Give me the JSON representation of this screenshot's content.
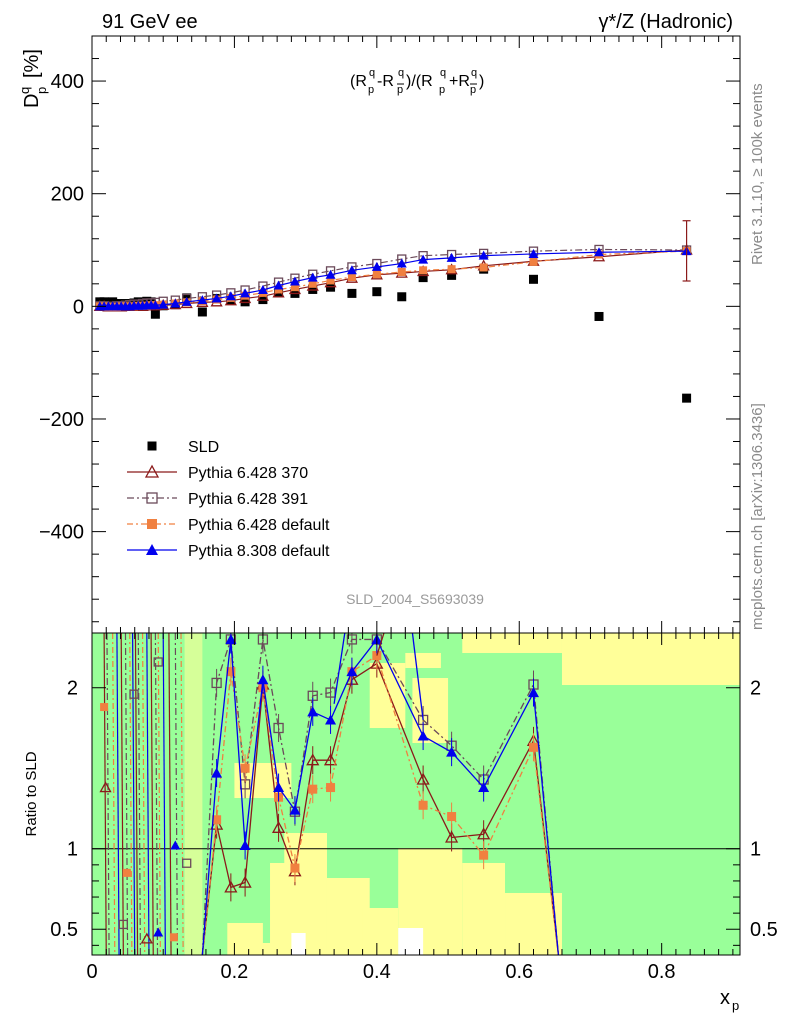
{
  "header": {
    "left": "91 GeV ee",
    "right": "γ*/Z (Hadronic)"
  },
  "side_labels": {
    "top": "Rivet 3.1.10, ≥ 100k events",
    "bottom": "mcplots.cern.ch [arXiv:1306.3436]"
  },
  "watermark": "SLD_2004_S5693039",
  "colors": {
    "data": "#000000",
    "p370": "#8b1a1a",
    "p391": "#6b4a5a",
    "p6def": "#f08040",
    "p8def": "#0000ee",
    "band_green": "#99ff99",
    "band_yellow": "#ffff99"
  },
  "chart_data": [
    {
      "type": "scatter",
      "title": "(R_p^q - R_p̅^q)/(R_p^q + R_p̅^q)",
      "xlabel": "x_p",
      "ylabel": "D_p^q [%]",
      "xlim": [
        0,
        0.91
      ],
      "ylim": [
        -580,
        480
      ],
      "x_ticks": [
        "0",
        "0.2",
        "0.4",
        "0.6",
        "0.8"
      ],
      "y_ticks": [
        "−400",
        "−200",
        "0",
        "200",
        "400"
      ],
      "legend_position": "lower-left",
      "x": [
        0.011,
        0.017,
        0.023,
        0.029,
        0.035,
        0.041,
        0.047,
        0.053,
        0.059,
        0.065,
        0.071,
        0.077,
        0.083,
        0.089,
        0.1,
        0.117,
        0.133,
        0.155,
        0.175,
        0.195,
        0.215,
        0.24,
        0.262,
        0.285,
        0.31,
        0.335,
        0.365,
        0.4,
        0.435,
        0.465,
        0.505,
        0.55,
        0.62,
        0.712,
        0.835
      ],
      "series": [
        {
          "name": "SLD",
          "key": "data",
          "marker": "square-filled",
          "values": [
            8,
            8,
            6,
            8,
            5,
            3,
            5,
            2,
            6,
            8,
            5,
            9,
            8,
            -14,
            1,
            3,
            15,
            -10,
            14,
            11,
            8,
            12,
            24,
            23,
            30,
            34,
            23,
            26,
            17,
            51,
            55,
            66,
            48,
            -18,
            -163
          ]
        },
        {
          "name": "Pythia 6.428 370",
          "key": "p370",
          "marker": "triangle-open",
          "values": [
            0,
            0,
            -1,
            -1,
            -1,
            -1,
            0,
            0,
            0,
            0,
            0,
            1,
            1,
            1,
            2,
            3,
            5,
            7,
            8,
            10,
            14,
            18,
            24,
            30,
            36,
            42,
            50,
            56,
            59,
            62,
            65,
            72,
            80,
            88,
            100
          ]
        },
        {
          "name": "Pythia 6.428 391",
          "key": "p391",
          "marker": "square-open",
          "values": [
            1,
            1,
            0,
            0,
            1,
            1,
            2,
            3,
            4,
            4,
            5,
            6,
            6,
            7,
            9,
            11,
            14,
            17,
            20,
            24,
            29,
            36,
            43,
            50,
            57,
            63,
            70,
            76,
            84,
            90,
            92,
            94,
            98,
            101,
            100
          ]
        },
        {
          "name": "Pythia 6.428 default",
          "key": "p6def",
          "marker": "square-filled",
          "values": [
            0,
            0,
            -1,
            -1,
            -1,
            0,
            0,
            0,
            0,
            1,
            1,
            1,
            2,
            2,
            3,
            5,
            7,
            9,
            12,
            15,
            19,
            24,
            30,
            34,
            40,
            46,
            52,
            57,
            61,
            64,
            66,
            69,
            79,
            92,
            98
          ]
        },
        {
          "name": "Pythia 8.308 default",
          "key": "p8def",
          "marker": "triangle-filled",
          "values": [
            0,
            0,
            0,
            0,
            0,
            0,
            0,
            0,
            1,
            1,
            1,
            2,
            2,
            2,
            3,
            5,
            8,
            11,
            14,
            18,
            23,
            29,
            37,
            44,
            51,
            56,
            64,
            70,
            76,
            83,
            86,
            90,
            93,
            96,
            98
          ]
        }
      ]
    },
    {
      "type": "line",
      "title": "",
      "xlabel": "x_p",
      "ylabel": "Ratio to SLD",
      "xlim": [
        0,
        0.91
      ],
      "ylim": [
        0.34,
        2.34
      ],
      "x_ticks": [
        "0",
        "0.2",
        "0.4",
        "0.6",
        "0.8"
      ],
      "y_ticks": [
        "0.5",
        "1",
        "2"
      ],
      "reference_line": 1,
      "x": [
        0.175,
        0.195,
        0.215,
        0.24,
        0.262,
        0.285,
        0.31,
        0.335,
        0.365,
        0.4,
        0.465,
        0.505,
        0.55,
        0.62
      ],
      "series": [
        {
          "name": "Pythia 6.428 370",
          "key": "p370",
          "values": [
            1.15,
            0.76,
            0.79,
            2.02,
            1.13,
            0.86,
            1.55,
            1.55,
            2.05,
            2.15,
            1.43,
            1.07,
            1.09,
            1.67
          ]
        },
        {
          "name": "Pythia 6.428 391",
          "key": "p391",
          "values": [
            2.03,
            2.3,
            1.4,
            2.3,
            1.75,
            1.23,
            1.95,
            1.97,
            2.3,
            2.3,
            1.8,
            1.64,
            1.43,
            2.02
          ]
        },
        {
          "name": "Pythia 6.428 default",
          "key": "p6def",
          "values": [
            1.18,
            2.1,
            1.5,
            2.0,
            1.32,
            0.88,
            1.37,
            1.38,
            2.1,
            2.2,
            1.27,
            1.2,
            0.96,
            1.63
          ]
        },
        {
          "name": "Pythia 8.308 default",
          "key": "p8def",
          "values": [
            1.47,
            2.3,
            1.02,
            2.05,
            1.38,
            1.24,
            1.85,
            1.8,
            2.1,
            2.3,
            1.7,
            1.6,
            1.38,
            1.97
          ]
        }
      ]
    }
  ]
}
